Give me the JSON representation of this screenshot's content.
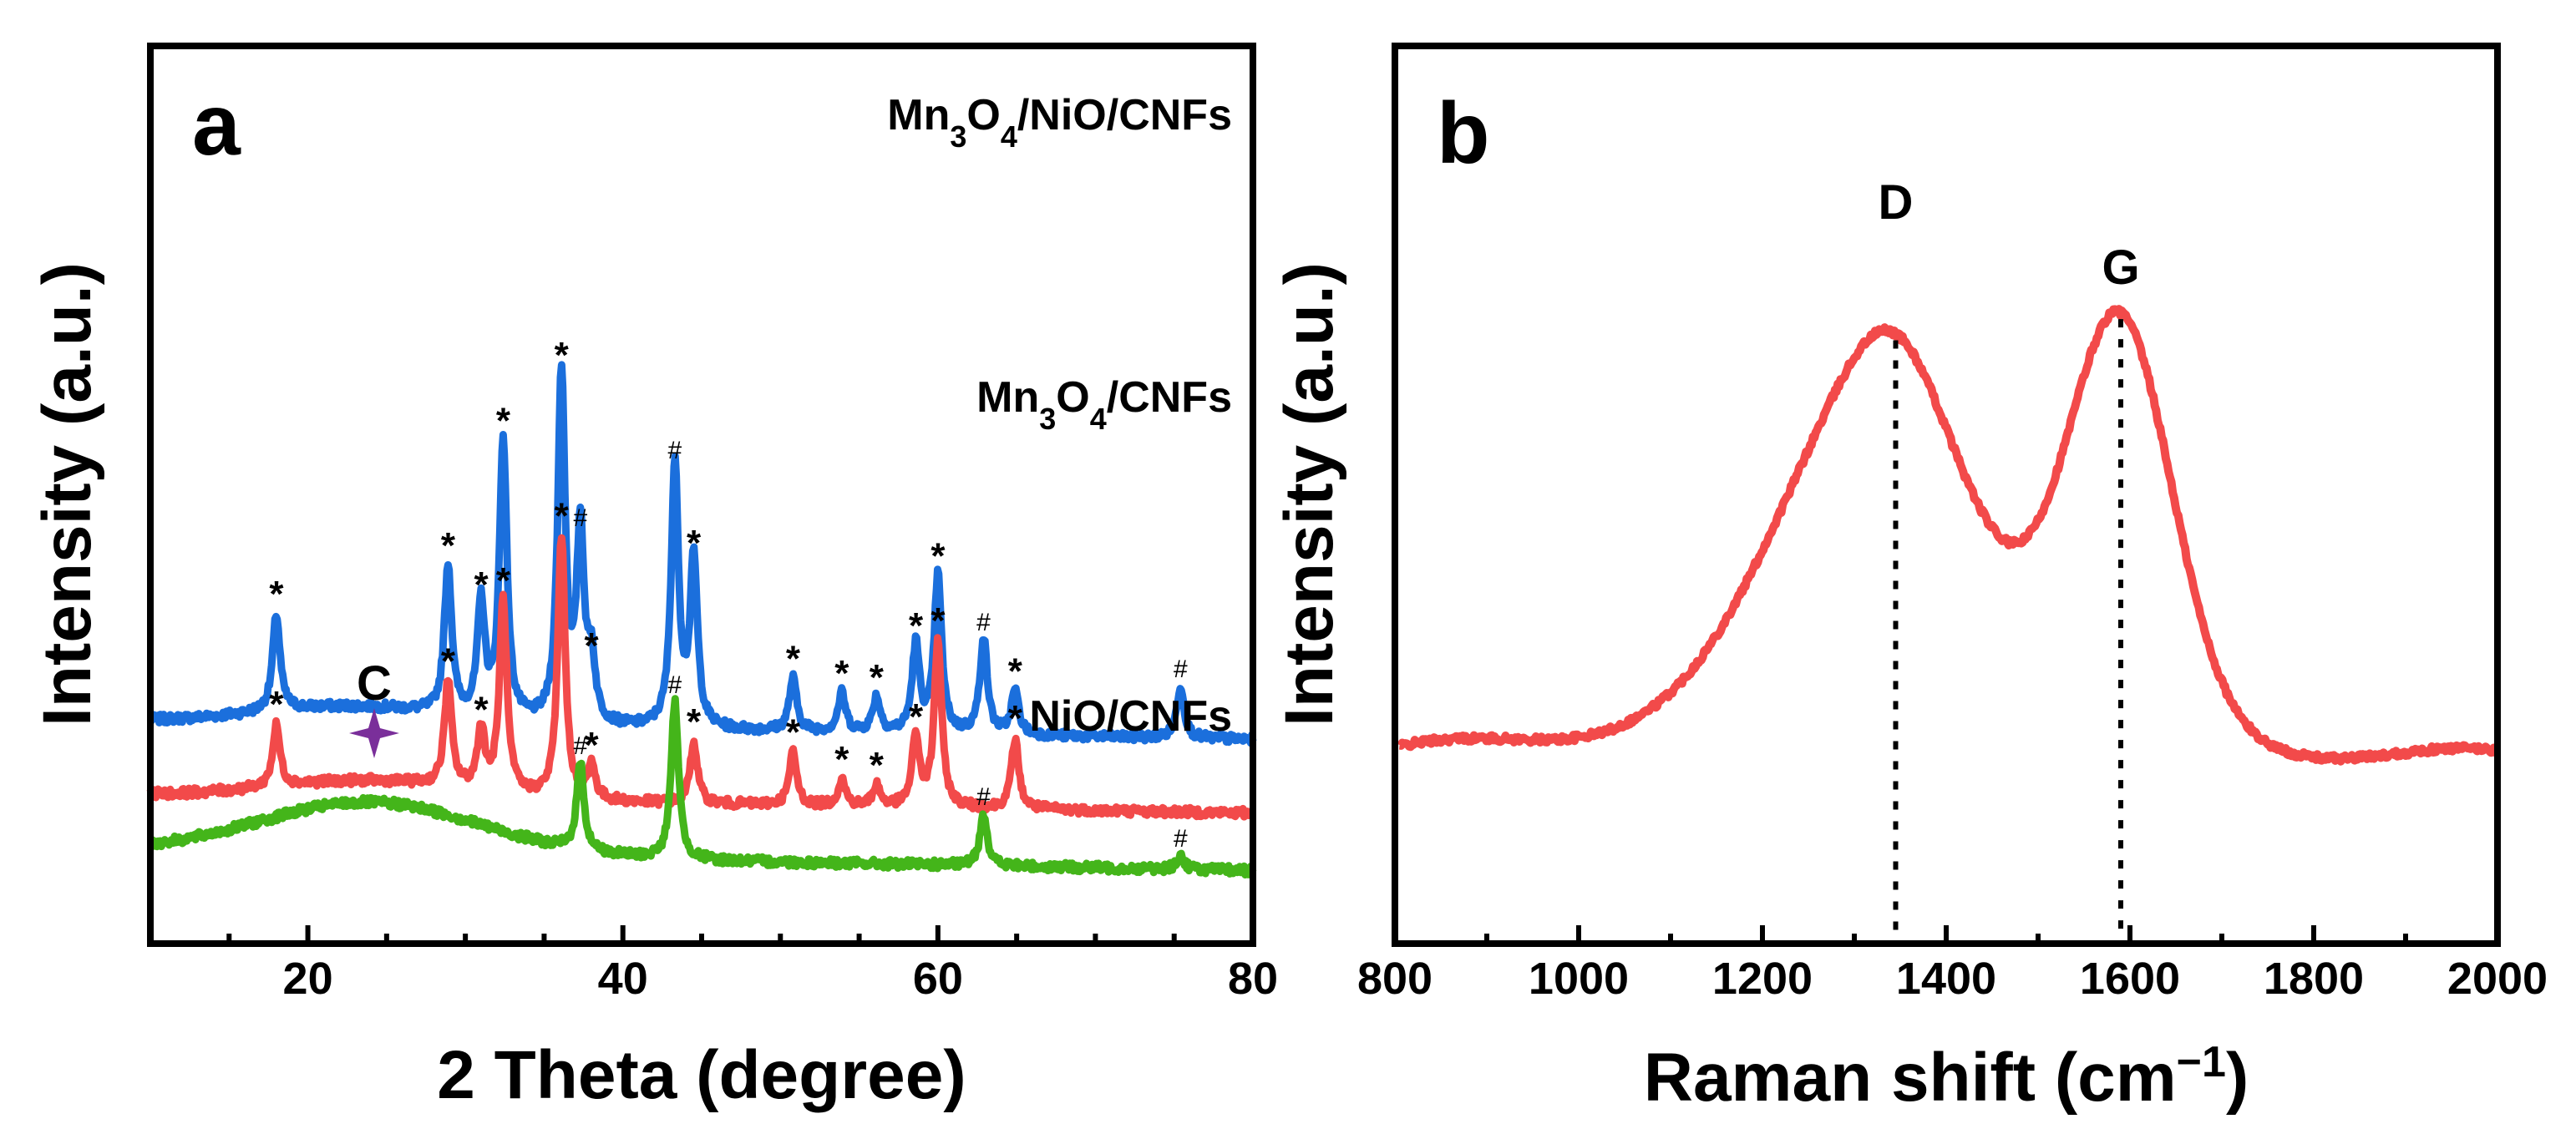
{
  "colors": {
    "blue": "#1b6fdc",
    "red": "#f24a4a",
    "green": "#44b51a",
    "purple": "#7a2f9a",
    "frame": "#000000"
  },
  "chart_data": [
    {
      "panel": "a",
      "type": "line",
      "title": "",
      "xlabel": "2 Theta (degree)",
      "ylabel": "Intensity (a.u.)",
      "xlim": [
        10,
        80
      ],
      "xticks": [
        20,
        40,
        60,
        80
      ],
      "xtick_labels": [
        "20",
        "40",
        "60",
        "80"
      ],
      "y_ticks_shown": false,
      "series": [
        {
          "name": "Mn3O4/NiO/CNFs",
          "label_base": "Mn",
          "label_sub1": "3",
          "label_mid": "O",
          "label_sub2": "4",
          "label_tail": "/NiO/CNFs",
          "color": "blue",
          "baseline": 0.84,
          "peaks": [
            {
              "x": 18.0,
              "h": 0.55,
              "m": "*"
            },
            {
              "x": 28.9,
              "h": 0.85,
              "m": "*"
            },
            {
              "x": 31.0,
              "h": 0.65,
              "m": "*"
            },
            {
              "x": 32.4,
              "h": 1.6,
              "m": "*"
            },
            {
              "x": 36.1,
              "h": 2.0,
              "m": "*"
            },
            {
              "x": 37.3,
              "h": 1.1,
              "m": "#"
            },
            {
              "x": 38.0,
              "h": 0.35,
              "m": "*"
            },
            {
              "x": 43.3,
              "h": 1.5,
              "m": "#"
            },
            {
              "x": 44.5,
              "h": 0.95,
              "m": "*"
            },
            {
              "x": 50.8,
              "h": 0.3,
              "m": "*"
            },
            {
              "x": 53.9,
              "h": 0.22,
              "m": "*"
            },
            {
              "x": 56.1,
              "h": 0.2,
              "m": "*"
            },
            {
              "x": 58.6,
              "h": 0.5,
              "m": "*"
            },
            {
              "x": 60.0,
              "h": 0.9,
              "m": "*"
            },
            {
              "x": 62.9,
              "h": 0.55,
              "m": "#"
            },
            {
              "x": 64.9,
              "h": 0.25,
              "m": "*"
            },
            {
              "x": 75.4,
              "h": 0.3,
              "m": "#"
            }
          ]
        },
        {
          "name": "Mn3O4/CNFs",
          "label_base": "Mn",
          "label_sub1": "3",
          "label_mid": "O",
          "label_sub2": "4",
          "label_tail": "/CNFs",
          "color": "red",
          "baseline": 0.42,
          "peaks": [
            {
              "x": 18.0,
              "h": 0.35,
              "m": "*"
            },
            {
              "x": 28.9,
              "h": 0.6,
              "m": "*"
            },
            {
              "x": 31.0,
              "h": 0.35,
              "m": "*"
            },
            {
              "x": 32.4,
              "h": 1.1,
              "m": "*"
            },
            {
              "x": 36.1,
              "h": 1.5,
              "m": "*"
            },
            {
              "x": 38.0,
              "h": 0.2,
              "m": "*"
            },
            {
              "x": 44.5,
              "h": 0.35,
              "m": "*"
            },
            {
              "x": 50.8,
              "h": 0.3,
              "m": "*"
            },
            {
              "x": 53.9,
              "h": 0.15,
              "m": "*"
            },
            {
              "x": 56.1,
              "h": 0.12,
              "m": "*"
            },
            {
              "x": 58.6,
              "h": 0.4,
              "m": "*"
            },
            {
              "x": 60.0,
              "h": 0.95,
              "m": "*"
            },
            {
              "x": 64.9,
              "h": 0.4,
              "m": "*"
            }
          ]
        },
        {
          "name": "NiO/CNFs",
          "label_base": "NiO/CNFs",
          "color": "green",
          "baseline": 0.05,
          "broad_hump_center": 24,
          "peaks": [
            {
              "x": 37.3,
              "h": 0.5,
              "m": "#"
            },
            {
              "x": 43.3,
              "h": 0.9,
              "m": "#"
            },
            {
              "x": 62.9,
              "h": 0.3,
              "m": "#"
            },
            {
              "x": 75.4,
              "h": 0.08,
              "m": "#"
            }
          ],
          "annotation": {
            "text": "C",
            "x": 24,
            "marker": "star"
          }
        }
      ]
    },
    {
      "panel": "b",
      "type": "line",
      "title": "",
      "xlabel_main": "Raman shift (cm",
      "xlabel_sup": "−1",
      "xlabel_close": ")",
      "ylabel": "Intensity (a.u.)",
      "xlim": [
        800,
        2000
      ],
      "xticks": [
        800,
        1000,
        1200,
        1400,
        1600,
        1800,
        2000
      ],
      "xtick_labels": [
        "800",
        "1000",
        "1200",
        "1400",
        "1600",
        "1800",
        "2000"
      ],
      "y_ticks_shown": false,
      "series": [
        {
          "name": "Raman spectrum",
          "color": "red",
          "bands": [
            {
              "name": "D",
              "x": 1345
            },
            {
              "name": "G",
              "x": 1590
            }
          ]
        }
      ]
    }
  ]
}
